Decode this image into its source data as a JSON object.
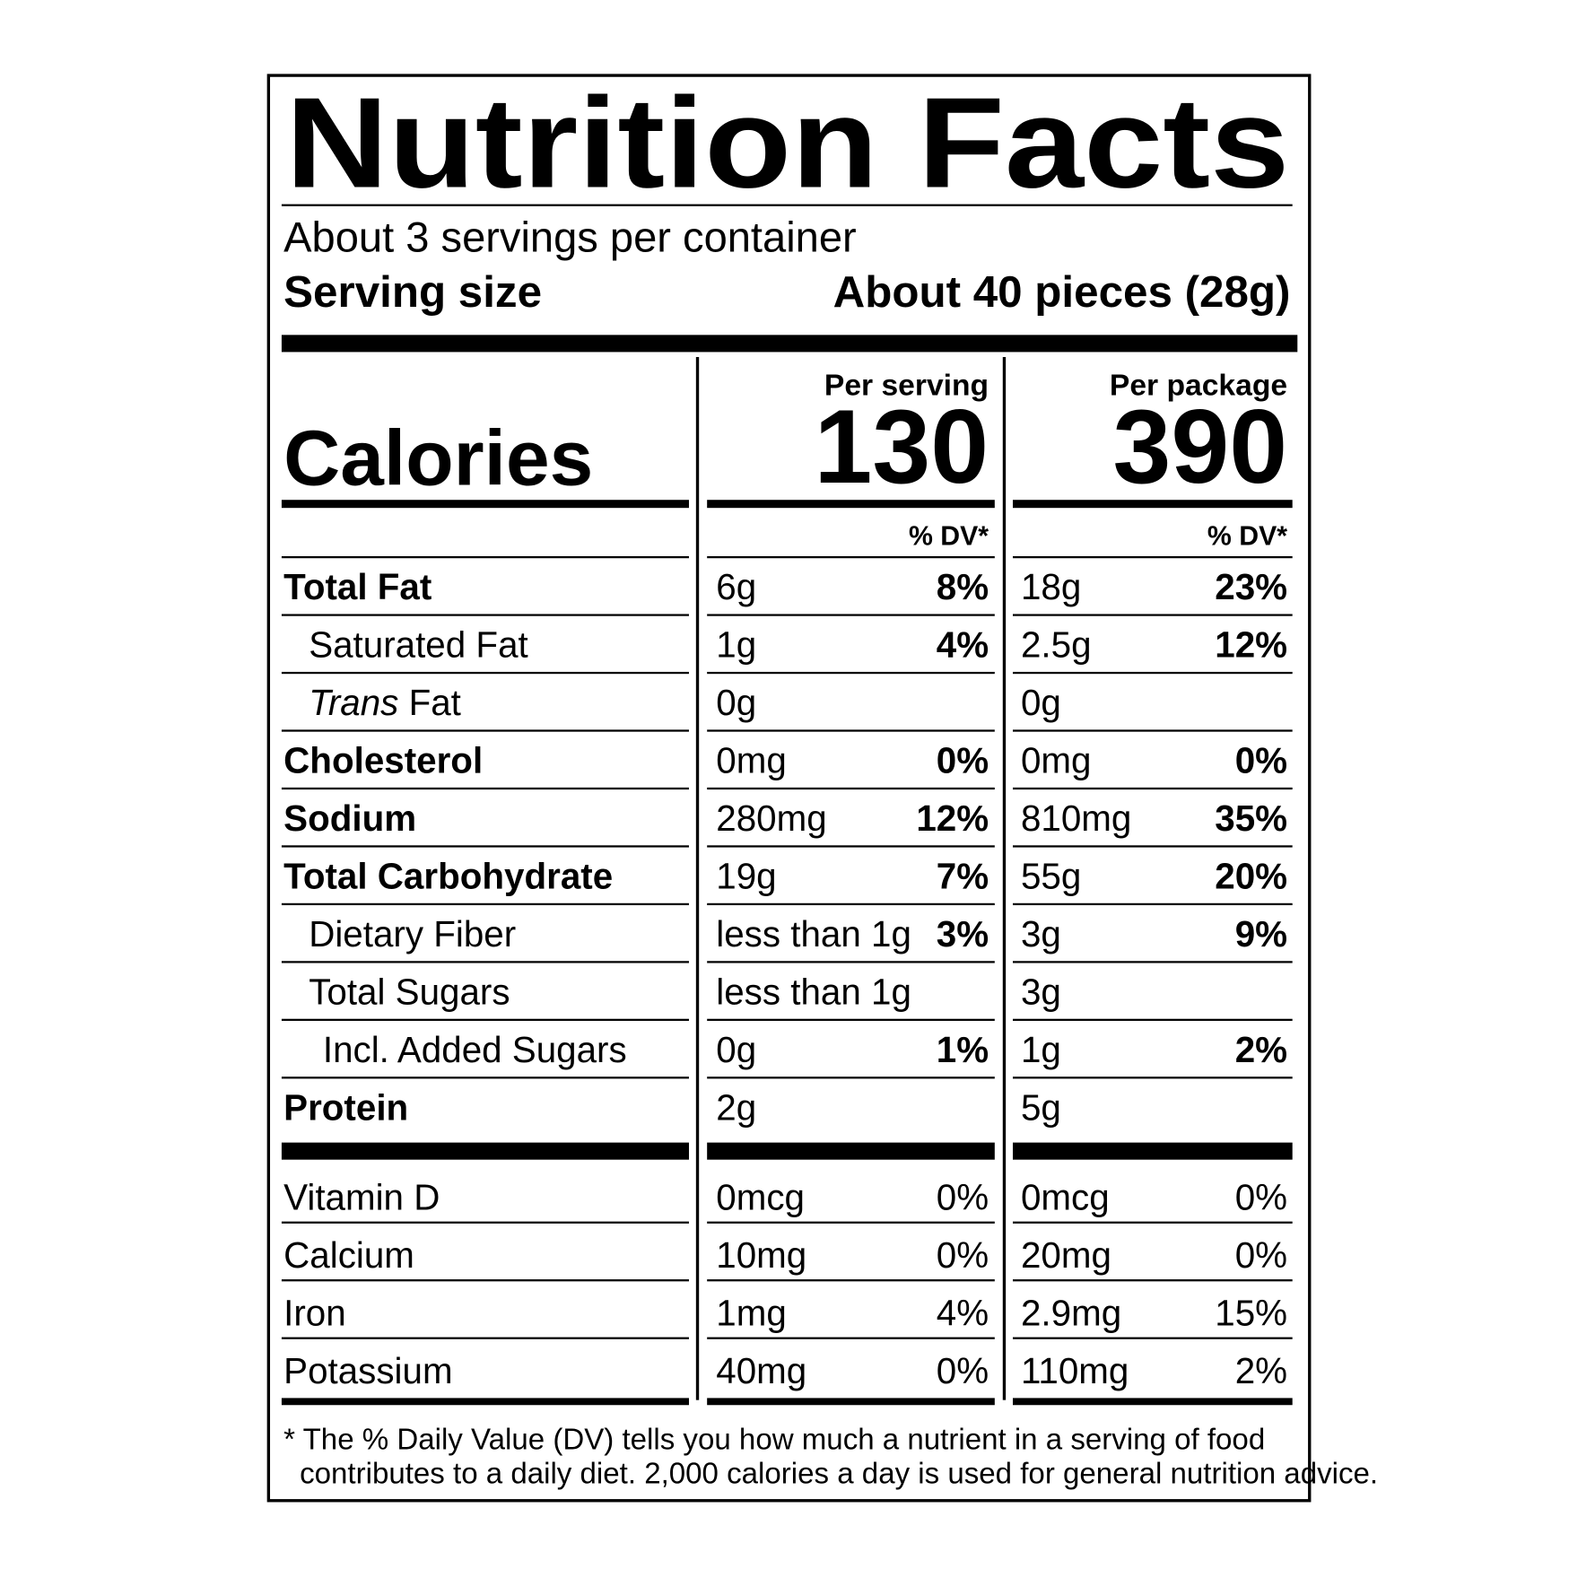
{
  "title": "Nutrition Facts",
  "servings": "About 3 servings per container",
  "serving_size": {
    "label": "Serving size",
    "value": "About 40 pieces (28g)"
  },
  "calories": {
    "label": "Calories",
    "per_serving_header": "Per serving",
    "per_serving": "130",
    "per_package_header": "Per package",
    "per_package": "390"
  },
  "dv_header": [
    "% DV*",
    "% DV*"
  ],
  "rows": [
    {
      "name": "Total Fat",
      "serving_amount": "6g",
      "serving_dv": "8%",
      "package_amount": "18g",
      "package_dv": "23%"
    },
    {
      "name": "Saturated Fat",
      "serving_amount": "1g",
      "serving_dv": "4%",
      "package_amount": "2.5g",
      "package_dv": "12%"
    },
    {
      "name_italic": "Trans",
      "name": "Fat",
      "serving_amount": "0g",
      "package_amount": "0g"
    },
    {
      "name": "Cholesterol",
      "serving_amount": "0mg",
      "serving_dv": "0%",
      "package_amount": "0mg",
      "package_dv": "0%"
    },
    {
      "name": "Sodium",
      "serving_amount": "280mg",
      "serving_dv": "12%",
      "package_amount": "810mg",
      "package_dv": "35%"
    },
    {
      "name": "Total Carbohydrate",
      "serving_amount": "19g",
      "serving_dv": "7%",
      "package_amount": "55g",
      "package_dv": "20%"
    },
    {
      "name": "Dietary Fiber",
      "serving_amount": "less than 1g",
      "serving_dv": "3%",
      "package_amount": "3g",
      "package_dv": "9%"
    },
    {
      "name": "Total Sugars",
      "serving_amount": "less than 1g",
      "package_amount": "3g"
    },
    {
      "name": "Incl. Added Sugars",
      "serving_amount": "0g",
      "serving_dv": "1%",
      "package_amount": "1g",
      "package_dv": "2%"
    },
    {
      "name": "Protein",
      "serving_amount": "2g",
      "package_amount": "5g"
    }
  ],
  "vitamins": [
    {
      "name": "Vitamin D",
      "serving_amount": "0mcg",
      "serving_dv": "0%",
      "package_amount": "0mcg",
      "package_dv": "0%"
    },
    {
      "name": "Calcium",
      "serving_amount": "10mg",
      "serving_dv": "0%",
      "package_amount": "20mg",
      "package_dv": "0%"
    },
    {
      "name": "Iron",
      "serving_amount": "1mg",
      "serving_dv": "4%",
      "package_amount": "2.9mg",
      "package_dv": "15%"
    },
    {
      "name": "Potassium",
      "serving_amount": "40mg",
      "serving_dv": "0%",
      "package_amount": "110mg",
      "package_dv": "2%"
    }
  ],
  "footnote": [
    "* The % Daily Value (DV) tells you how much a nutrient in a serving of food",
    "contributes to a daily diet. 2,000 calories a day is used for general nutrition advice."
  ]
}
